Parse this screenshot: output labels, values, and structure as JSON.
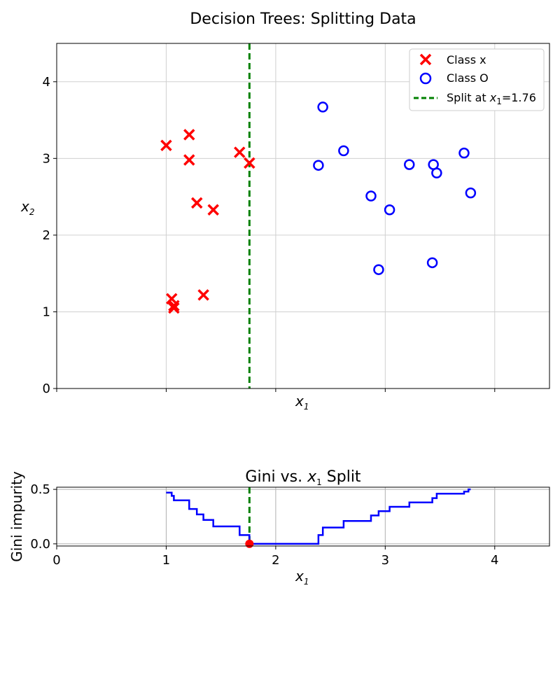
{
  "chart_data": [
    {
      "type": "scatter",
      "title": "Decision Trees: Splitting Data",
      "xlabel_var": "x",
      "xlabel_sub": "1",
      "ylabel_var": "x",
      "ylabel_sub": "2",
      "xlim": [
        0,
        4.5
      ],
      "ylim": [
        0,
        4.5
      ],
      "yticks": [
        0,
        1,
        2,
        3,
        4
      ],
      "xticks": [
        0,
        1,
        2,
        3,
        4
      ],
      "show_xtick_labels": false,
      "grid": true,
      "legend_position": "top-right",
      "split_value": 1.76,
      "legend": {
        "class_x": "Class x",
        "class_o": "Class O",
        "split_prefix": "Split at ",
        "split_var": "x",
        "split_sub": "1",
        "split_suffix": "=1.76"
      },
      "series": [
        {
          "name": "Class x",
          "marker": "x",
          "color": "#ff0000",
          "points": [
            [
              1.0,
              3.17
            ],
            [
              1.21,
              3.31
            ],
            [
              1.21,
              2.98
            ],
            [
              1.67,
              3.08
            ],
            [
              1.76,
              2.94
            ],
            [
              1.28,
              2.42
            ],
            [
              1.43,
              2.33
            ],
            [
              1.05,
              1.17
            ],
            [
              1.07,
              1.08
            ],
            [
              1.07,
              1.05
            ],
            [
              1.34,
              1.22
            ]
          ]
        },
        {
          "name": "Class O",
          "marker": "o",
          "color": "#0000ff",
          "points": [
            [
              2.43,
              3.67
            ],
            [
              2.39,
              2.91
            ],
            [
              2.62,
              3.1
            ],
            [
              2.87,
              2.51
            ],
            [
              3.04,
              2.33
            ],
            [
              3.22,
              2.92
            ],
            [
              3.44,
              2.92
            ],
            [
              3.47,
              2.81
            ],
            [
              3.72,
              3.07
            ],
            [
              3.78,
              2.55
            ],
            [
              2.94,
              1.55
            ],
            [
              3.43,
              1.64
            ]
          ]
        }
      ]
    },
    {
      "type": "line",
      "title_prefix": "Gini vs. ",
      "title_var": "x",
      "title_sub": "1",
      "title_suffix": " Split",
      "xlabel_var": "x",
      "xlabel_sub": "1",
      "ylabel": "Gini impurity",
      "xlim": [
        0,
        4.5
      ],
      "ylim": [
        -0.02,
        0.52
      ],
      "xticks": [
        0,
        1,
        2,
        3,
        4
      ],
      "xtick_labels": [
        "0",
        "1",
        "2",
        "3",
        "4"
      ],
      "yticks": [
        0.0,
        0.5
      ],
      "ytick_labels": [
        "0.0",
        "0.5"
      ],
      "grid": true,
      "split_value": 1.76,
      "min_point": [
        1.76,
        0.0
      ],
      "series": [
        {
          "name": "Gini",
          "color": "#0000ff",
          "step_points": [
            [
              1.0,
              0.47
            ],
            [
              1.05,
              0.47
            ],
            [
              1.05,
              0.44
            ],
            [
              1.07,
              0.44
            ],
            [
              1.07,
              0.4
            ],
            [
              1.21,
              0.4
            ],
            [
              1.21,
              0.32
            ],
            [
              1.28,
              0.32
            ],
            [
              1.28,
              0.27
            ],
            [
              1.34,
              0.27
            ],
            [
              1.34,
              0.22
            ],
            [
              1.43,
              0.22
            ],
            [
              1.43,
              0.16
            ],
            [
              1.67,
              0.16
            ],
            [
              1.67,
              0.08
            ],
            [
              1.76,
              0.08
            ],
            [
              1.76,
              0.0
            ],
            [
              2.39,
              0.0
            ],
            [
              2.39,
              0.08
            ],
            [
              2.43,
              0.08
            ],
            [
              2.43,
              0.15
            ],
            [
              2.62,
              0.15
            ],
            [
              2.62,
              0.21
            ],
            [
              2.87,
              0.21
            ],
            [
              2.87,
              0.26
            ],
            [
              2.94,
              0.26
            ],
            [
              2.94,
              0.3
            ],
            [
              3.04,
              0.3
            ],
            [
              3.04,
              0.34
            ],
            [
              3.22,
              0.34
            ],
            [
              3.22,
              0.38
            ],
            [
              3.43,
              0.38
            ],
            [
              3.43,
              0.42
            ],
            [
              3.47,
              0.42
            ],
            [
              3.47,
              0.46
            ],
            [
              3.72,
              0.46
            ],
            [
              3.72,
              0.48
            ],
            [
              3.76,
              0.48
            ],
            [
              3.76,
              0.5
            ],
            [
              3.78,
              0.5
            ]
          ]
        }
      ]
    }
  ]
}
